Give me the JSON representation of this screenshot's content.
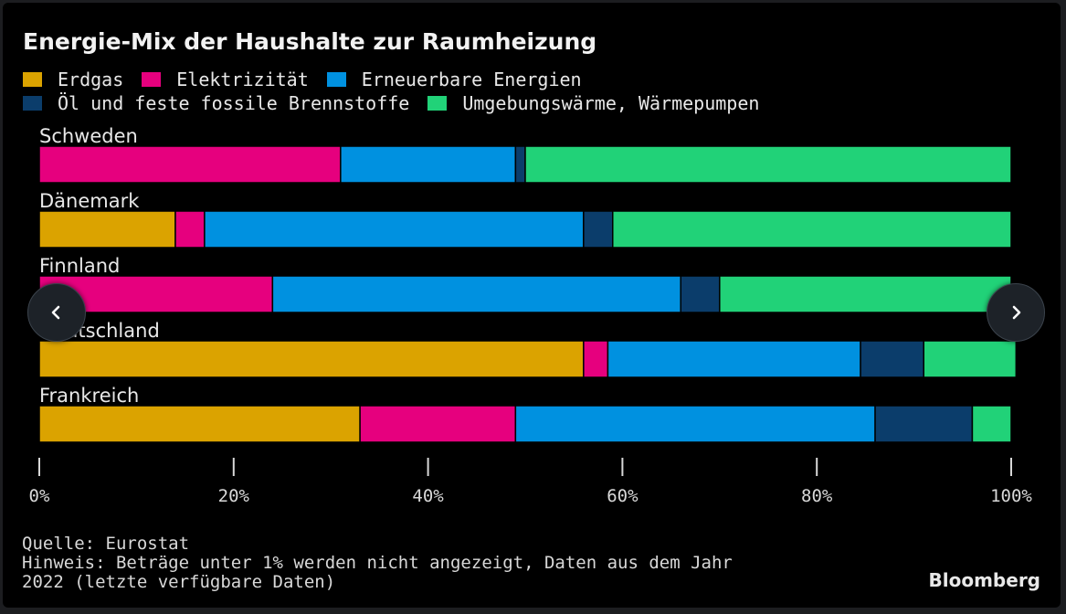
{
  "chart_data": {
    "type": "bar",
    "orientation": "horizontal",
    "stacked": true,
    "title": "Energie-Mix der Haushalte zur Raumheizung",
    "categories": [
      "Schweden",
      "Dänemark",
      "Finnland",
      "Deutschland",
      "Frankreich"
    ],
    "series": [
      {
        "name": "Erdgas",
        "color": "#dba300",
        "values": [
          0,
          14,
          0,
          56,
          33
        ]
      },
      {
        "name": "Elektrizität",
        "color": "#e6007e",
        "values": [
          31,
          3,
          24,
          2.5,
          16
        ]
      },
      {
        "name": "Erneuerbare Energien",
        "color": "#0091e0",
        "values": [
          18,
          39,
          42,
          26,
          37
        ]
      },
      {
        "name": "Öl und feste fossile Brennstoffe",
        "color": "#0b3d6b",
        "values": [
          1,
          3,
          4,
          6.5,
          10
        ]
      },
      {
        "name": "Umgebungswärme, Wärmepumpen",
        "color": "#21d278",
        "values": [
          50,
          41,
          30,
          9.5,
          4
        ]
      }
    ],
    "xlim": [
      0,
      100
    ],
    "ticks": [
      0,
      20,
      40,
      60,
      80,
      100
    ],
    "tick_labels": [
      "0%",
      "20%",
      "40%",
      "60%",
      "80%",
      "100%"
    ],
    "legend_position": "top-left"
  },
  "footer": {
    "source": "Quelle: Eurostat",
    "note_line1": "Hinweis: Beträge unter 1% werden nicht angezeigt, Daten aus dem Jahr",
    "note_line2": "2022 (letzte verfügbare Daten)"
  },
  "logo": "Bloomberg",
  "nav": {
    "prev_icon": "chevron-left-icon",
    "next_icon": "chevron-right-icon"
  }
}
